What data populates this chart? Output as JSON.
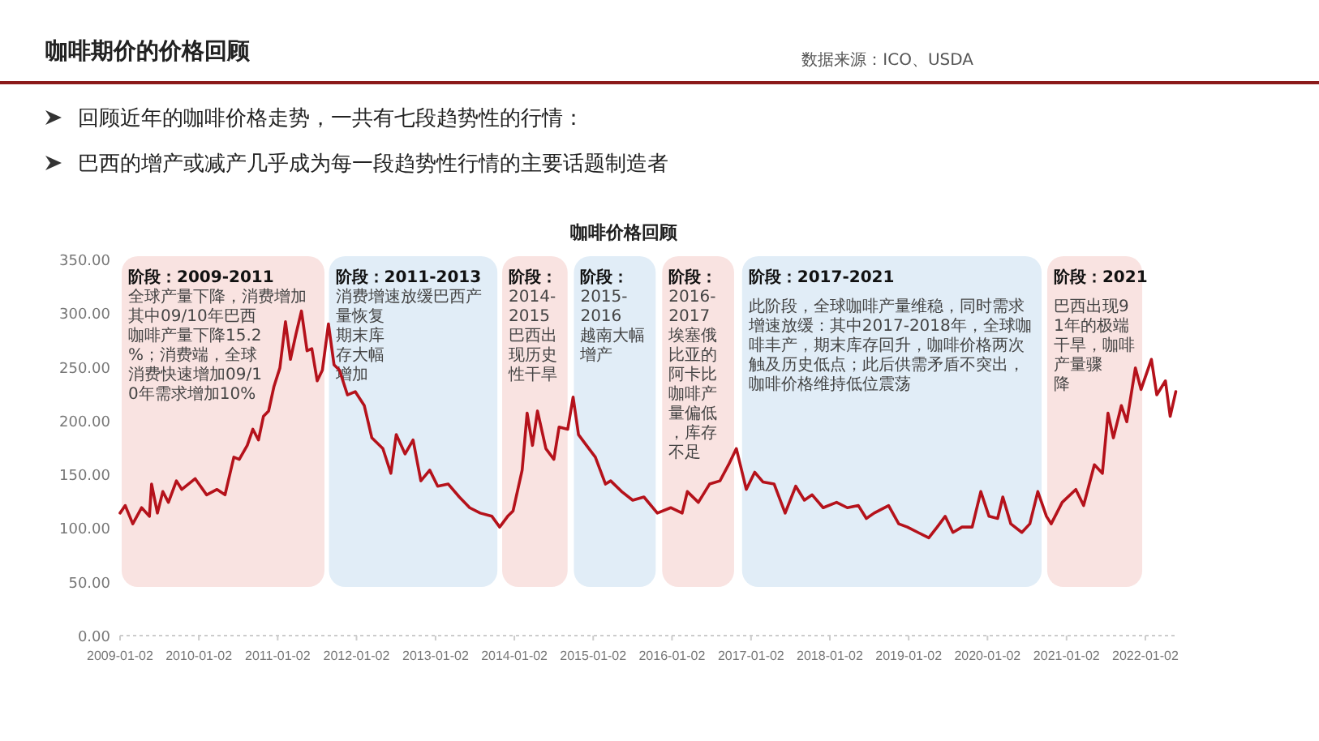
{
  "chart_data": {
    "type": "line",
    "title": "咖啡期价的价格回顾",
    "subtitle": "咖啡价格回顾",
    "annotations": [
      "数据来源：ICO、USDA",
      "回顾近年的咖啡价格走势，一共有七段趋势性的行情：",
      "巴西的增产或减产几乎成为每一段趋势性行情的主要话题制造者"
    ],
    "xlim": [
      "2009-01-02",
      "2022-05-25"
    ],
    "xticks": [
      "2009-01-02",
      "2010-01-02",
      "2011-01-02",
      "2012-01-02",
      "2013-01-02",
      "2014-01-02",
      "2015-01-02",
      "2016-01-02",
      "2017-01-02",
      "2018-01-02",
      "2019-01-02",
      "2020-01-02",
      "2021-01-02",
      "2022-01-02"
    ],
    "ylim": [
      0,
      350
    ],
    "yticks": [
      {
        "value": 0,
        "label": "0.00"
      },
      {
        "value": 50,
        "label": "50.00"
      },
      {
        "value": 100,
        "label": "100.00"
      },
      {
        "value": 150,
        "label": "150.00"
      },
      {
        "value": 200,
        "label": "200.00"
      },
      {
        "value": 250,
        "label": "250.00"
      },
      {
        "value": 300,
        "label": "300.00"
      },
      {
        "value": 350,
        "label": "350.00"
      }
    ],
    "bands": [
      {
        "axis": "x",
        "from": "2009-01-02",
        "to": "2011-08-14",
        "color": "#f9e3e1",
        "label": "阶段：2009-2011\n全球产量下降，消费增加其中09/10年巴西咖啡产量下降15.2%；消费端，全球消费快速增加09/10年需求增加10%"
      },
      {
        "axis": "x",
        "from": "2011-08-20",
        "to": "2013-10-23",
        "color": "#e1edf7",
        "label": "阶段：2011-2013\n消费增速放缓巴西产量恢复期末库存大幅增加"
      },
      {
        "axis": "x",
        "from": "2013-10-30",
        "to": "2014-09-13",
        "color": "#f9e3e1",
        "label": "阶段：\n2014-\n2015\n巴西出现历史性干旱"
      },
      {
        "axis": "x",
        "from": "2014-09-27",
        "to": "2015-10-26",
        "color": "#e1edf7",
        "label": "阶段：\n2015-\n2016\n越南大幅增产"
      },
      {
        "axis": "x",
        "from": "2015-11-10",
        "to": "2016-10-23",
        "color": "#f9e3e1",
        "label": "阶段：\n2016-\n2017\n埃塞俄比亚的阿卡比咖啡产量偏低，库存不足"
      },
      {
        "axis": "x",
        "from": "2016-11-14",
        "to": "2020-09-16",
        "color": "#e1edf7",
        "label": "阶段：2017-2021\n\n此阶段，全球咖啡产量维稳，同时需求增速放缓：其中2017-2018年，全球咖啡丰产，期末库存回升，咖啡价格两次触及历史低点；此后供需矛盾不突出，咖啡价格维持低位震荡"
      },
      {
        "axis": "x",
        "from": "2020-09-27",
        "to": "2021-12-26",
        "color": "#f9e3e1",
        "label": "阶段：2021\n\n巴西出现91年的极端干旱，咖啡产量骤降"
      }
    ],
    "series": [
      {
        "color": "#b5121b",
        "x": [
          "2009-01-02",
          "2009-01-26",
          "2009-03-02",
          "2009-04-12",
          "2009-05-18",
          "2009-05-28",
          "2009-06-24",
          "2009-07-19",
          "2009-08-14",
          "2009-09-20",
          "2009-10-15",
          "2009-12-16",
          "2010-02-07",
          "2010-03-27",
          "2010-05-03",
          "2010-06-13",
          "2010-07-08",
          "2010-08-14",
          "2010-09-09",
          "2010-10-05",
          "2010-10-28",
          "2010-11-21",
          "2010-12-16",
          "2011-01-12",
          "2011-02-07",
          "2011-03-02",
          "2011-03-27",
          "2011-04-22",
          "2011-05-18",
          "2011-06-09",
          "2011-07-04",
          "2011-07-28",
          "2011-08-25",
          "2011-09-20",
          "2011-10-15",
          "2011-11-21",
          "2011-12-27",
          "2012-02-07",
          "2012-03-13",
          "2012-05-03",
          "2012-06-09",
          "2012-07-04",
          "2012-08-14",
          "2012-09-20",
          "2012-10-26",
          "2012-12-06",
          "2013-01-12",
          "2013-03-02",
          "2013-04-22",
          "2013-06-09",
          "2013-07-28",
          "2013-09-20",
          "2013-10-26",
          "2013-12-02",
          "2013-12-27",
          "2014-02-07",
          "2014-03-02",
          "2014-03-27",
          "2014-04-19",
          "2014-05-28",
          "2014-07-04",
          "2014-07-28",
          "2014-09-06",
          "2014-10-01",
          "2014-10-26",
          "2014-12-02",
          "2015-01-12",
          "2015-02-28",
          "2015-03-24",
          "2015-05-14",
          "2015-07-04",
          "2015-08-25",
          "2015-10-26",
          "2015-12-27",
          "2016-02-18",
          "2016-03-13",
          "2016-05-03",
          "2016-06-24",
          "2016-08-11",
          "2016-09-20",
          "2016-10-26",
          "2016-12-11",
          "2017-01-19",
          "2017-02-26",
          "2017-04-19",
          "2017-06-09",
          "2017-07-28",
          "2017-09-06",
          "2017-10-12",
          "2017-12-02",
          "2018-02-02",
          "2018-03-24",
          "2018-05-14",
          "2018-06-20",
          "2018-07-26",
          "2018-10-01",
          "2018-11-17",
          "2018-12-27",
          "2019-02-14",
          "2019-04-05",
          "2019-05-14",
          "2019-06-20",
          "2019-07-26",
          "2019-09-06",
          "2019-10-23",
          "2019-12-02",
          "2020-01-09",
          "2020-02-18",
          "2020-03-13",
          "2020-04-19",
          "2020-06-09",
          "2020-07-16",
          "2020-08-22",
          "2020-10-01",
          "2020-10-23",
          "2020-12-13",
          "2021-02-14",
          "2021-03-22",
          "2021-05-11",
          "2021-06-17",
          "2021-07-13",
          "2021-08-07",
          "2021-09-13",
          "2021-10-08",
          "2021-11-17",
          "2021-12-13",
          "2022-01-30",
          "2022-02-24",
          "2022-04-05",
          "2022-04-27",
          "2022-05-23"
        ],
        "values": [
          114,
          121,
          104,
          119,
          111,
          141,
          114,
          134,
          124,
          144,
          136,
          146,
          131,
          136,
          131,
          166,
          164,
          177,
          192,
          182,
          204,
          209,
          232,
          249,
          292,
          257,
          280,
          302,
          265,
          267,
          237,
          247,
          290,
          252,
          247,
          224,
          227,
          214,
          184,
          174,
          151,
          187,
          169,
          182,
          144,
          154,
          139,
          141,
          129,
          119,
          114,
          111,
          101,
          111,
          116,
          154,
          207,
          177,
          209,
          174,
          164,
          194,
          192,
          222,
          187,
          177,
          166,
          141,
          144,
          134,
          126,
          129,
          114,
          119,
          114,
          134,
          124,
          141,
          144,
          159,
          174,
          136,
          152,
          143,
          141,
          114,
          139,
          126,
          131,
          119,
          124,
          119,
          121,
          109,
          114,
          121,
          104,
          101,
          96,
          91,
          101,
          111,
          96,
          101,
          101,
          134,
          111,
          109,
          129,
          104,
          96,
          104,
          134,
          111,
          104,
          124,
          136,
          121,
          159,
          151,
          207,
          184,
          214,
          199,
          249,
          229,
          257,
          224,
          237,
          204,
          227
        ]
      }
    ]
  }
}
